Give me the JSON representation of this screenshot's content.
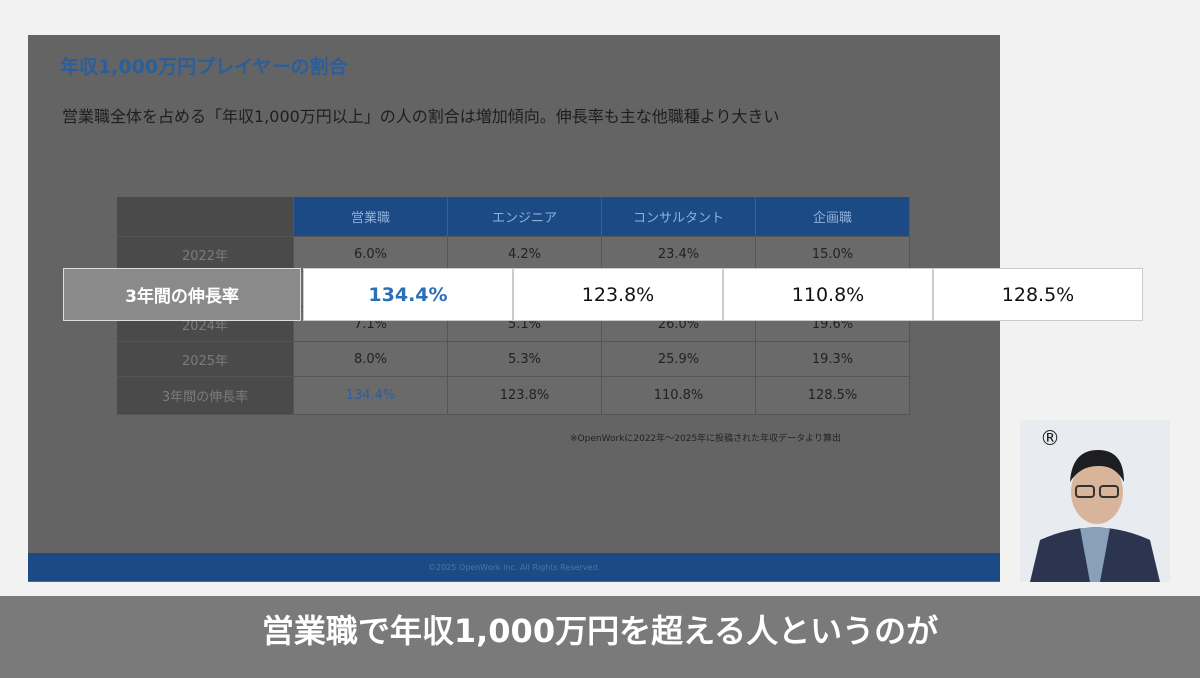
{
  "slide": {
    "title": "年収1,000万円プレイヤーの割合",
    "subtitle": "営業職全体を占める「年収1,000万円以上」の人の割合は増加傾向。伸長率も主な他職種より大きい",
    "table": {
      "header": [
        "営業職",
        "エンジニア",
        "コンサルタント",
        "企画職"
      ],
      "rows": [
        {
          "label": "2022年",
          "values": [
            "6.0%",
            "4.2%",
            "23.4%",
            "15.0%"
          ]
        },
        {
          "label": "2024年",
          "values": [
            "7.1%",
            "5.1%",
            "26.0%",
            "19.6%"
          ]
        },
        {
          "label": "2025年",
          "values": [
            "8.0%",
            "5.3%",
            "25.9%",
            "19.3%"
          ]
        },
        {
          "label": "3年間の伸長率",
          "values": [
            "134.4%",
            "123.8%",
            "110.8%",
            "128.5%"
          ]
        }
      ]
    },
    "note": "※OpenWorkに2022年～2025年に投稿された年収データより算出",
    "footer": "©2025 OpenWork Inc. All Rights Reserved."
  },
  "highlight": {
    "label": "3年間の伸長率",
    "values": [
      "134.4%",
      "123.8%",
      "110.8%",
      "128.5%"
    ]
  },
  "registered": "®",
  "caption": "営業職で年収1,000万円を超える人というのが"
}
